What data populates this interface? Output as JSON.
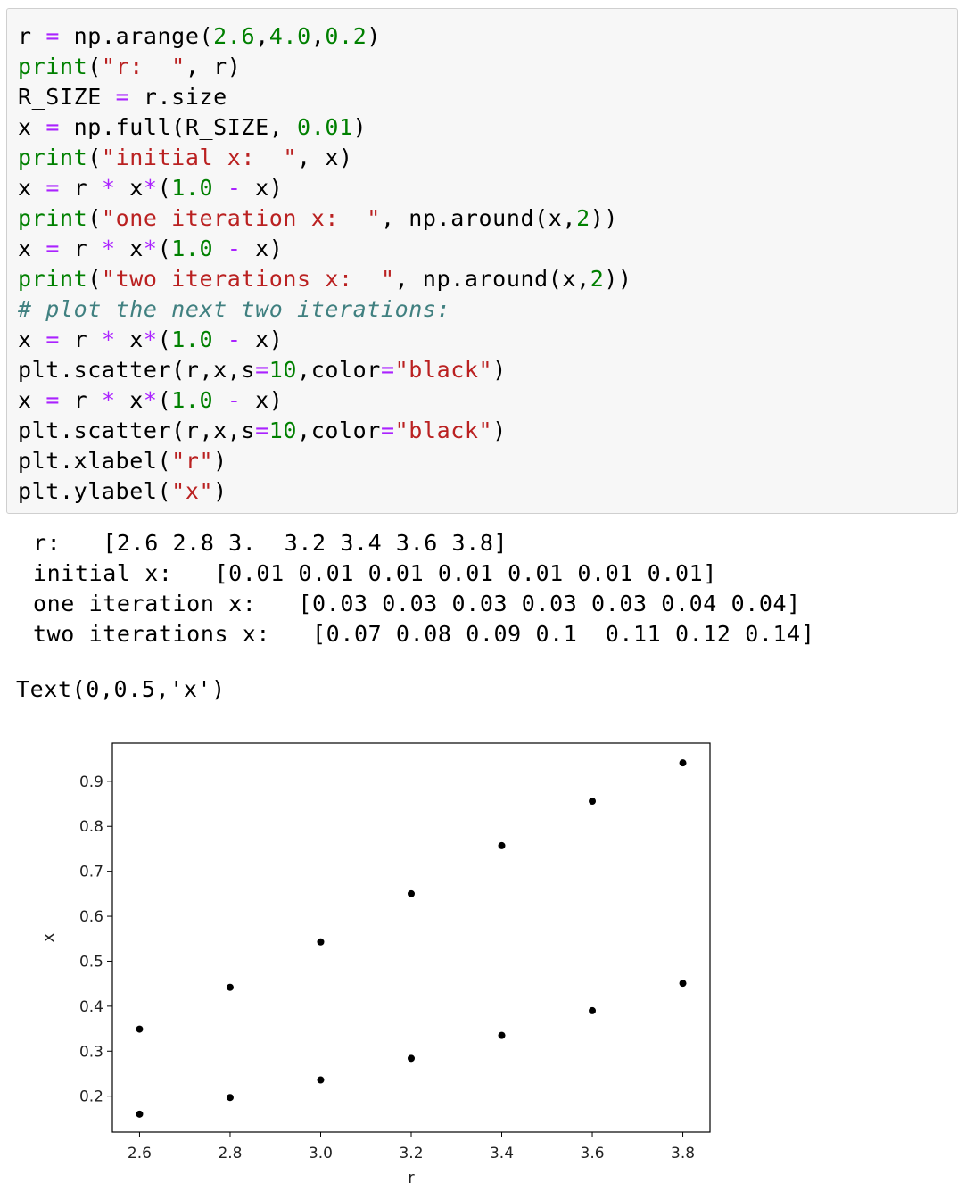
{
  "code_cell": {
    "lines": [
      [
        {
          "t": "p",
          "v": "r "
        },
        {
          "t": "o",
          "v": "="
        },
        {
          "t": "p",
          "v": " np.arange("
        },
        {
          "t": "n",
          "v": "2.6"
        },
        {
          "t": "p",
          "v": ","
        },
        {
          "t": "n",
          "v": "4.0"
        },
        {
          "t": "p",
          "v": ","
        },
        {
          "t": "n",
          "v": "0.2"
        },
        {
          "t": "p",
          "v": ")"
        }
      ],
      [
        {
          "t": "k",
          "v": "print"
        },
        {
          "t": "p",
          "v": "("
        },
        {
          "t": "s",
          "v": "\"r:  \""
        },
        {
          "t": "p",
          "v": ", r)"
        }
      ],
      [
        {
          "t": "p",
          "v": "R_SIZE "
        },
        {
          "t": "o",
          "v": "="
        },
        {
          "t": "p",
          "v": " r.size"
        }
      ],
      [
        {
          "t": "p",
          "v": "x "
        },
        {
          "t": "o",
          "v": "="
        },
        {
          "t": "p",
          "v": " np.full(R_SIZE, "
        },
        {
          "t": "n",
          "v": "0.01"
        },
        {
          "t": "p",
          "v": ")"
        }
      ],
      [
        {
          "t": "k",
          "v": "print"
        },
        {
          "t": "p",
          "v": "("
        },
        {
          "t": "s",
          "v": "\"initial x:  \""
        },
        {
          "t": "p",
          "v": ", x)"
        }
      ],
      [
        {
          "t": "p",
          "v": "x "
        },
        {
          "t": "o",
          "v": "="
        },
        {
          "t": "p",
          "v": " r "
        },
        {
          "t": "o",
          "v": "*"
        },
        {
          "t": "p",
          "v": " x"
        },
        {
          "t": "o",
          "v": "*"
        },
        {
          "t": "p",
          "v": "("
        },
        {
          "t": "n",
          "v": "1.0"
        },
        {
          "t": "p",
          "v": " "
        },
        {
          "t": "o",
          "v": "-"
        },
        {
          "t": "p",
          "v": " x)"
        }
      ],
      [
        {
          "t": "k",
          "v": "print"
        },
        {
          "t": "p",
          "v": "("
        },
        {
          "t": "s",
          "v": "\"one iteration x:  \""
        },
        {
          "t": "p",
          "v": ", np.around(x,"
        },
        {
          "t": "n",
          "v": "2"
        },
        {
          "t": "p",
          "v": "))"
        }
      ],
      [
        {
          "t": "p",
          "v": "x "
        },
        {
          "t": "o",
          "v": "="
        },
        {
          "t": "p",
          "v": " r "
        },
        {
          "t": "o",
          "v": "*"
        },
        {
          "t": "p",
          "v": " x"
        },
        {
          "t": "o",
          "v": "*"
        },
        {
          "t": "p",
          "v": "("
        },
        {
          "t": "n",
          "v": "1.0"
        },
        {
          "t": "p",
          "v": " "
        },
        {
          "t": "o",
          "v": "-"
        },
        {
          "t": "p",
          "v": " x)"
        }
      ],
      [
        {
          "t": "k",
          "v": "print"
        },
        {
          "t": "p",
          "v": "("
        },
        {
          "t": "s",
          "v": "\"two iterations x:  \""
        },
        {
          "t": "p",
          "v": ", np.around(x,"
        },
        {
          "t": "n",
          "v": "2"
        },
        {
          "t": "p",
          "v": "))"
        }
      ],
      [
        {
          "t": "c",
          "v": "# plot the next two iterations:"
        }
      ],
      [
        {
          "t": "p",
          "v": "x "
        },
        {
          "t": "o",
          "v": "="
        },
        {
          "t": "p",
          "v": " r "
        },
        {
          "t": "o",
          "v": "*"
        },
        {
          "t": "p",
          "v": " x"
        },
        {
          "t": "o",
          "v": "*"
        },
        {
          "t": "p",
          "v": "("
        },
        {
          "t": "n",
          "v": "1.0"
        },
        {
          "t": "p",
          "v": " "
        },
        {
          "t": "o",
          "v": "-"
        },
        {
          "t": "p",
          "v": " x)"
        }
      ],
      [
        {
          "t": "p",
          "v": "plt.scatter(r,x,s"
        },
        {
          "t": "o",
          "v": "="
        },
        {
          "t": "n",
          "v": "10"
        },
        {
          "t": "p",
          "v": ",color"
        },
        {
          "t": "o",
          "v": "="
        },
        {
          "t": "s",
          "v": "\"black\""
        },
        {
          "t": "p",
          "v": ")"
        }
      ],
      [
        {
          "t": "p",
          "v": "x "
        },
        {
          "t": "o",
          "v": "="
        },
        {
          "t": "p",
          "v": " r "
        },
        {
          "t": "o",
          "v": "*"
        },
        {
          "t": "p",
          "v": " x"
        },
        {
          "t": "o",
          "v": "*"
        },
        {
          "t": "p",
          "v": "("
        },
        {
          "t": "n",
          "v": "1.0"
        },
        {
          "t": "p",
          "v": " "
        },
        {
          "t": "o",
          "v": "-"
        },
        {
          "t": "p",
          "v": " x)"
        }
      ],
      [
        {
          "t": "p",
          "v": "plt.scatter(r,x,s"
        },
        {
          "t": "o",
          "v": "="
        },
        {
          "t": "n",
          "v": "10"
        },
        {
          "t": "p",
          "v": ",color"
        },
        {
          "t": "o",
          "v": "="
        },
        {
          "t": "s",
          "v": "\"black\""
        },
        {
          "t": "p",
          "v": ")"
        }
      ],
      [
        {
          "t": "p",
          "v": "plt.xlabel("
        },
        {
          "t": "s",
          "v": "\"r\""
        },
        {
          "t": "p",
          "v": ")"
        }
      ],
      [
        {
          "t": "p",
          "v": "plt.ylabel("
        },
        {
          "t": "s",
          "v": "\"x\""
        },
        {
          "t": "p",
          "v": ")"
        }
      ]
    ]
  },
  "output": {
    "stdout": [
      "r:   [2.6 2.8 3.  3.2 3.4 3.6 3.8]",
      "initial x:   [0.01 0.01 0.01 0.01 0.01 0.01 0.01]",
      "one iteration x:   [0.03 0.03 0.03 0.03 0.03 0.04 0.04]",
      "two iterations x:   [0.07 0.08 0.09 0.1  0.11 0.12 0.14]"
    ],
    "result": "Text(0,0.5,'x')"
  },
  "colors": {
    "keyword": "#008000",
    "string": "#ba2121",
    "number": "#008000",
    "operator": "#aa22ff",
    "comment": "#408080",
    "cell_background": "#f7f7f7",
    "cell_border": "#cfcfcf",
    "marker": "#000000"
  },
  "chart_data": {
    "type": "scatter",
    "xlabel": "r",
    "ylabel": "x",
    "xlim": [
      2.54,
      3.86
    ],
    "ylim": [
      0.12,
      0.985
    ],
    "xticks": [
      "2.6",
      "2.8",
      "3.0",
      "3.2",
      "3.4",
      "3.6",
      "3.8"
    ],
    "xtick_values": [
      2.6,
      2.8,
      3.0,
      3.2,
      3.4,
      3.6,
      3.8
    ],
    "yticks": [
      "0.2",
      "0.3",
      "0.4",
      "0.5",
      "0.6",
      "0.7",
      "0.8",
      "0.9"
    ],
    "ytick_values": [
      0.2,
      0.3,
      0.4,
      0.5,
      0.6,
      0.7,
      0.8,
      0.9
    ],
    "grid": false,
    "series": [
      {
        "x": [
          2.6,
          2.8,
          3.0,
          3.2,
          3.4,
          3.6,
          3.8
        ],
        "y": [
          0.16,
          0.197,
          0.236,
          0.284,
          0.335,
          0.39,
          0.451
        ]
      },
      {
        "x": [
          2.6,
          2.8,
          3.0,
          3.2,
          3.4,
          3.6,
          3.8
        ],
        "y": [
          0.349,
          0.442,
          0.543,
          0.65,
          0.757,
          0.856,
          0.941
        ]
      }
    ]
  }
}
